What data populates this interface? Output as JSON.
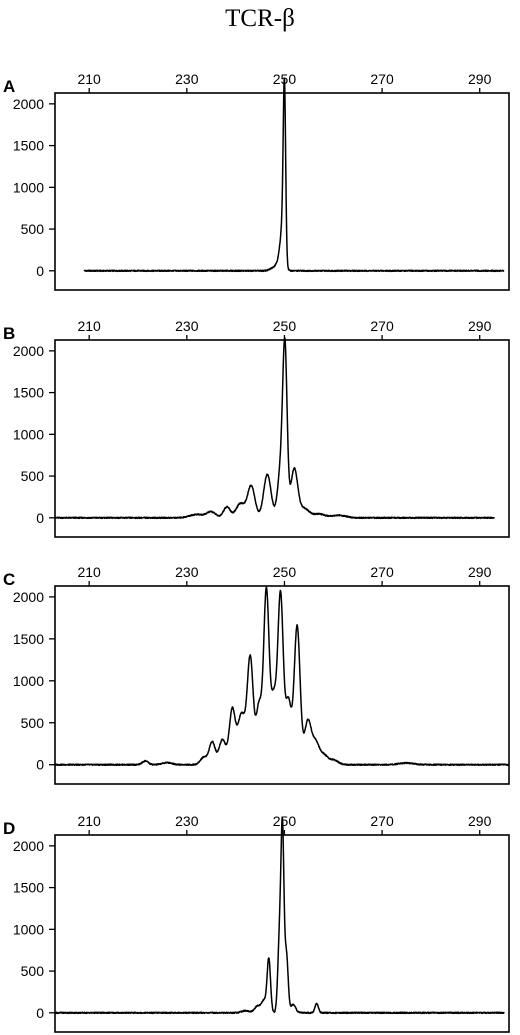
{
  "title": "TCR-β",
  "chart_data": [
    {
      "type": "line",
      "panel_label": "A",
      "xlim": [
        203,
        296
      ],
      "ylim": [
        -230,
        2130
      ],
      "x_ticks": [
        210,
        230,
        250,
        270,
        290
      ],
      "y_ticks": [
        0,
        500,
        1000,
        1500,
        2000
      ],
      "baseline": [
        209,
        295
      ],
      "peaks": [
        {
          "x": 250.0,
          "h": 1980,
          "w": 0.25
        },
        {
          "x": 249.6,
          "h": 420,
          "w": 0.45
        },
        {
          "x": 249.0,
          "h": 120,
          "w": 0.7
        },
        {
          "x": 247.5,
          "h": 25,
          "w": 0.6
        }
      ]
    },
    {
      "type": "line",
      "panel_label": "B",
      "xlim": [
        203,
        296
      ],
      "ylim": [
        -230,
        2130
      ],
      "x_ticks": [
        210,
        230,
        250,
        270,
        290
      ],
      "y_ticks": [
        0,
        500,
        1000,
        1500,
        2000
      ],
      "baseline": [
        203,
        293
      ],
      "peaks": [
        {
          "x": 250.1,
          "h": 1950,
          "w": 0.45
        },
        {
          "x": 249.2,
          "h": 560,
          "w": 0.6
        },
        {
          "x": 252.0,
          "h": 580,
          "w": 0.7
        },
        {
          "x": 246.5,
          "h": 520,
          "w": 0.75
        },
        {
          "x": 243.2,
          "h": 380,
          "w": 0.75
        },
        {
          "x": 241.0,
          "h": 170,
          "w": 0.9
        },
        {
          "x": 238.2,
          "h": 130,
          "w": 0.7
        },
        {
          "x": 235.0,
          "h": 70,
          "w": 0.9
        },
        {
          "x": 232.0,
          "h": 40,
          "w": 1.4
        },
        {
          "x": 254.0,
          "h": 110,
          "w": 1.0
        },
        {
          "x": 257.0,
          "h": 45,
          "w": 1.2
        },
        {
          "x": 261.0,
          "h": 30,
          "w": 1.5
        }
      ]
    },
    {
      "type": "line",
      "panel_label": "C",
      "xlim": [
        203,
        296
      ],
      "ylim": [
        -230,
        2130
      ],
      "x_ticks": [
        210,
        230,
        250,
        270,
        290
      ],
      "y_ticks": [
        0,
        500,
        1000,
        1500,
        2000
      ],
      "baseline": [
        203,
        296
      ],
      "peaks": [
        {
          "x": 246.3,
          "h": 2050,
          "w": 0.55
        },
        {
          "x": 249.2,
          "h": 2000,
          "w": 0.55
        },
        {
          "x": 252.6,
          "h": 1650,
          "w": 0.6
        },
        {
          "x": 243.0,
          "h": 1250,
          "w": 0.6
        },
        {
          "x": 247.8,
          "h": 780,
          "w": 0.6
        },
        {
          "x": 250.8,
          "h": 760,
          "w": 0.6
        },
        {
          "x": 244.8,
          "h": 700,
          "w": 0.6
        },
        {
          "x": 241.2,
          "h": 600,
          "w": 0.8
        },
        {
          "x": 239.3,
          "h": 640,
          "w": 0.6
        },
        {
          "x": 237.3,
          "h": 300,
          "w": 0.7
        },
        {
          "x": 235.2,
          "h": 270,
          "w": 0.6
        },
        {
          "x": 233.5,
          "h": 90,
          "w": 0.7
        },
        {
          "x": 254.8,
          "h": 520,
          "w": 0.7
        },
        {
          "x": 256.4,
          "h": 250,
          "w": 0.7
        },
        {
          "x": 258.0,
          "h": 110,
          "w": 0.8
        },
        {
          "x": 260.0,
          "h": 55,
          "w": 1.0
        },
        {
          "x": 221.5,
          "h": 45,
          "w": 0.6
        },
        {
          "x": 226.0,
          "h": 25,
          "w": 1.0
        },
        {
          "x": 275.0,
          "h": 20,
          "w": 1.5
        }
      ]
    },
    {
      "type": "line",
      "panel_label": "D",
      "xlim": [
        203,
        296
      ],
      "ylim": [
        -230,
        2130
      ],
      "x_ticks": [
        210,
        230,
        250,
        270,
        290
      ],
      "y_ticks": [
        0,
        500,
        1000,
        1500,
        2000
      ],
      "baseline": [
        203,
        295
      ],
      "peaks": [
        {
          "x": 249.6,
          "h": 2070,
          "w": 0.3
        },
        {
          "x": 249.0,
          "h": 900,
          "w": 0.35
        },
        {
          "x": 250.4,
          "h": 700,
          "w": 0.35
        },
        {
          "x": 246.8,
          "h": 640,
          "w": 0.35
        },
        {
          "x": 245.8,
          "h": 140,
          "w": 0.5
        },
        {
          "x": 244.5,
          "h": 80,
          "w": 0.6
        },
        {
          "x": 251.8,
          "h": 100,
          "w": 0.5
        },
        {
          "x": 256.6,
          "h": 110,
          "w": 0.35
        },
        {
          "x": 242.0,
          "h": 25,
          "w": 0.8
        }
      ]
    }
  ]
}
